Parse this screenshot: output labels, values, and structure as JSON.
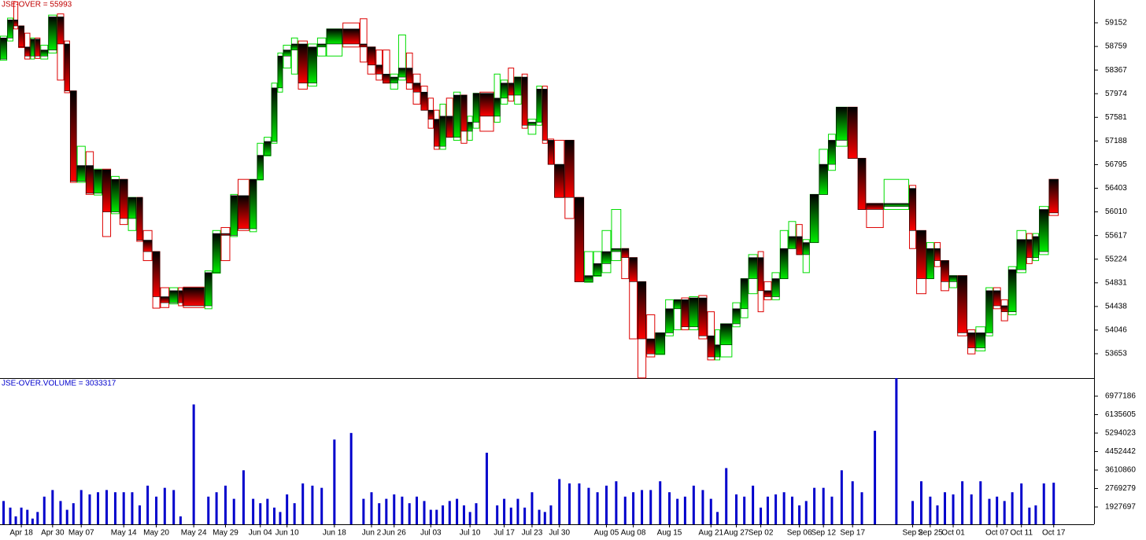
{
  "chart_data": {
    "type": "candlestick",
    "title": "JSE-OVER = 55993",
    "volume_title": "JSE-OVER.VOLUME = 3033317",
    "up_color": "#00dd00",
    "down_color": "#dd0000",
    "volume_color": "#0000cc",
    "categories": [
      null,
      null,
      null,
      "Apr 18",
      null,
      null,
      null,
      null,
      "Apr 30",
      null,
      null,
      null,
      "May 07",
      null,
      null,
      null,
      null,
      "May 14",
      null,
      null,
      null,
      "May 20",
      null,
      null,
      null,
      "May 24",
      null,
      null,
      "May 29",
      null,
      null,
      null,
      "Jun 04",
      null,
      null,
      null,
      "Jun 10",
      null,
      null,
      null,
      null,
      "Jun 18",
      null,
      null,
      "Jun 2",
      null,
      null,
      "Jun 26",
      null,
      null,
      null,
      null,
      "Jul 03",
      null,
      null,
      null,
      null,
      null,
      "Jul 10",
      null,
      null,
      null,
      "Jul 17",
      null,
      null,
      null,
      "Jul 23",
      null,
      null,
      null,
      "Jul 30",
      null,
      null,
      null,
      null,
      "Aug 05",
      null,
      null,
      "Aug 08",
      null,
      null,
      null,
      "Aug 15",
      null,
      null,
      null,
      null,
      "Aug 21",
      null,
      null,
      "Aug 27",
      null,
      null,
      "Sep 02",
      null,
      null,
      null,
      null,
      "Sep 06",
      null,
      null,
      "Sep 12",
      null,
      null,
      "Sep 17",
      null,
      null,
      null,
      "Sep 2",
      null,
      "Sep 25",
      null,
      null,
      "Oct 01",
      null,
      null,
      null,
      null,
      "Oct 07",
      null,
      null,
      "Oct 11",
      null,
      null,
      null,
      "Oct 17"
    ],
    "open": [
      58550,
      58900,
      59200,
      59100,
      58750,
      58600,
      58880,
      58600,
      58700,
      59250,
      58800,
      58020,
      56520,
      56780,
      56320,
      56710,
      56010,
      56550,
      55900,
      56250,
      55540,
      55350,
      54600,
      54500,
      54700,
      54750,
      54450,
      55000,
      55650,
      55620,
      56280,
      55730,
      56550,
      56950,
      57180,
      58070,
      58600,
      58700,
      58800,
      58150,
      58750,
      58800,
      59050,
      58800,
      58750,
      58450,
      58300,
      58150,
      58250,
      58400,
      58150,
      58000,
      57700,
      57550,
      57100,
      57600,
      57250,
      57950,
      57350,
      57500,
      57980,
      57600,
      57900,
      58150,
      57950,
      58250,
      57450,
      57500,
      58050,
      57200,
      56800,
      57200,
      56250,
      54850,
      54950,
      55150,
      55350,
      55400,
      55250,
      54850,
      53900,
      53650,
      54000,
      54400,
      54550,
      54100,
      54580,
      53950,
      53600,
      53800,
      54150,
      54400,
      54900,
      55250,
      54700,
      54600,
      54900,
      55400,
      55600,
      55300,
      55500,
      56300,
      56800,
      57200,
      57750,
      56900,
      56150,
      56100,
      56400,
      55700,
      54900,
      55400,
      55200,
      54850,
      54950,
      54000,
      53750,
      54000,
      54700,
      54450,
      54350,
      55050,
      55550,
      55250,
      55350,
      56550
    ],
    "high": [
      58930,
      59230,
      59500,
      59100,
      58980,
      58900,
      58900,
      58780,
      59280,
      59300,
      58850,
      58020,
      57100,
      57010,
      56720,
      56720,
      56600,
      56550,
      56250,
      56250,
      55700,
      55350,
      54750,
      54750,
      54750,
      54760,
      55030,
      55700,
      55750,
      56300,
      56550,
      56550,
      57150,
      57250,
      58150,
      58650,
      58780,
      58900,
      58850,
      58800,
      58900,
      59050,
      59150,
      59220,
      58750,
      58700,
      58700,
      58300,
      58950,
      58650,
      58300,
      58100,
      57900,
      57700,
      57800,
      57900,
      58000,
      57950,
      57600,
      57980,
      58000,
      58300,
      58200,
      58400,
      58250,
      58300,
      57550,
      58100,
      58100,
      57220,
      57200,
      57200,
      56250,
      55350,
      55350,
      55700,
      56050,
      55400,
      55250,
      54850,
      54300,
      54000,
      54550,
      54550,
      54580,
      54600,
      54620,
      54350,
      54050,
      54150,
      54500,
      54900,
      55300,
      55350,
      54850,
      55000,
      55700,
      55850,
      55800,
      55550,
      56300,
      57050,
      57300,
      57750,
      57750,
      56900,
      56150,
      56550,
      56450,
      55700,
      55500,
      55500,
      55200,
      54950,
      54950,
      54050,
      54100,
      54750,
      54750,
      54550,
      55100,
      55700,
      55650,
      55650,
      56100,
      56550
    ],
    "low": [
      58530,
      58850,
      59050,
      58740,
      58550,
      58550,
      58560,
      58550,
      58650,
      58200,
      57990,
      56500,
      56500,
      56300,
      56290,
      55600,
      55980,
      55800,
      55700,
      55520,
      55200,
      54410,
      54420,
      54480,
      54450,
      54420,
      54400,
      54990,
      55200,
      55600,
      55700,
      55680,
      56540,
      56940,
      57150,
      58000,
      58400,
      58300,
      58050,
      58100,
      58600,
      58600,
      58750,
      58500,
      58300,
      58200,
      58150,
      58050,
      58200,
      58050,
      57800,
      57700,
      57400,
      57050,
      57050,
      57250,
      57200,
      57150,
      57200,
      57400,
      57350,
      57500,
      57800,
      57850,
      57800,
      57400,
      57300,
      57450,
      57150,
      56800,
      56250,
      55900,
      54850,
      54840,
      54940,
      55000,
      55200,
      54900,
      53900,
      53250,
      53600,
      53640,
      53950,
      54050,
      54050,
      54050,
      53900,
      53550,
      53550,
      53600,
      54100,
      54250,
      54650,
      54350,
      54550,
      54550,
      54900,
      55400,
      55300,
      55000,
      55500,
      56300,
      56700,
      57100,
      56900,
      56050,
      55750,
      56050,
      55400,
      54650,
      54900,
      55100,
      54700,
      54750,
      53950,
      53650,
      53700,
      53950,
      54400,
      54200,
      54300,
      55000,
      55150,
      55200,
      55300,
      55950
    ],
    "close": [
      58900,
      59200,
      59100,
      58750,
      58600,
      58880,
      58600,
      58700,
      59250,
      58800,
      58020,
      56520,
      56780,
      56320,
      56710,
      56010,
      56550,
      55900,
      56250,
      55540,
      55350,
      54600,
      54500,
      54700,
      54500,
      54450,
      55000,
      55650,
      55620,
      56280,
      55730,
      56550,
      56950,
      57180,
      58070,
      58600,
      58700,
      58800,
      58150,
      58750,
      58800,
      59050,
      58800,
      58750,
      58450,
      58300,
      58150,
      58250,
      58400,
      58150,
      58000,
      57700,
      57550,
      57100,
      57600,
      57250,
      57950,
      57350,
      57500,
      57980,
      57600,
      57900,
      58150,
      57950,
      58250,
      57450,
      57500,
      58050,
      57200,
      56800,
      56250,
      56250,
      54850,
      54950,
      55150,
      55350,
      55400,
      55250,
      54850,
      53900,
      53650,
      54000,
      54400,
      54550,
      54100,
      54580,
      53950,
      53600,
      53800,
      54150,
      54400,
      54900,
      55250,
      54700,
      54600,
      54900,
      55400,
      55600,
      55300,
      55500,
      56300,
      56800,
      57200,
      57750,
      56900,
      56050,
      56050,
      56150,
      55700,
      54900,
      55400,
      55200,
      54850,
      54950,
      54000,
      53750,
      54000,
      54700,
      54450,
      54350,
      55050,
      55550,
      55250,
      55600,
      56050,
      55993
    ],
    "volume": [
      2200000,
      1900000,
      1500000,
      1900000,
      1800000,
      1400000,
      1700000,
      2400000,
      2700000,
      2200000,
      1800000,
      2100000,
      2700000,
      2500000,
      2600000,
      2700000,
      2600000,
      2600000,
      2600000,
      2000000,
      2900000,
      2400000,
      2800000,
      2700000,
      1500000,
      6600000,
      2400000,
      2600000,
      2900000,
      2300000,
      3600000,
      2300000,
      2100000,
      2300000,
      1900000,
      1700000,
      2500000,
      2100000,
      3000000,
      2900000,
      2800000,
      5000000,
      5300000,
      2300000,
      2600000,
      2100000,
      2300000,
      2500000,
      2400000,
      2100000,
      2400000,
      2200000,
      1800000,
      1800000,
      2000000,
      2200000,
      2300000,
      2000000,
      1700000,
      2100000,
      4400000,
      2000000,
      2300000,
      1900000,
      2300000,
      1900000,
      2600000,
      1800000,
      1700000,
      2000000,
      3200000,
      3000000,
      3000000,
      2800000,
      2600000,
      2900000,
      3100000,
      2400000,
      2600000,
      2700000,
      2700000,
      3100000,
      2600000,
      2300000,
      2400000,
      2900000,
      2700000,
      2300000,
      1700000,
      3700000,
      2500000,
      2400000,
      2900000,
      1900000,
      2400000,
      2500000,
      2600000,
      2400000,
      2000000,
      2200000,
      2800000,
      2800000,
      2400000,
      3600000,
      3100000,
      2600000,
      5400000,
      7800000,
      2200000,
      3100000,
      2400000,
      2000000,
      2600000,
      2500000,
      3100000,
      2500000,
      3100000,
      2300000,
      2400000,
      2200000,
      2600000,
      3000000,
      1900000,
      2000000,
      3000000,
      3033317
    ],
    "ylim": [
      53248,
      59531
    ],
    "yticks": [
      59152,
      58759,
      58367,
      57974,
      57581,
      57188,
      56795,
      56403,
      56010,
      55617,
      55224,
      54831,
      54438,
      54046,
      53653
    ],
    "y2lim": [
      1140000,
      7765000
    ],
    "y2ticks": [
      6977186,
      6135605,
      5294023,
      4452442,
      3610860,
      2769279,
      1927697
    ]
  }
}
